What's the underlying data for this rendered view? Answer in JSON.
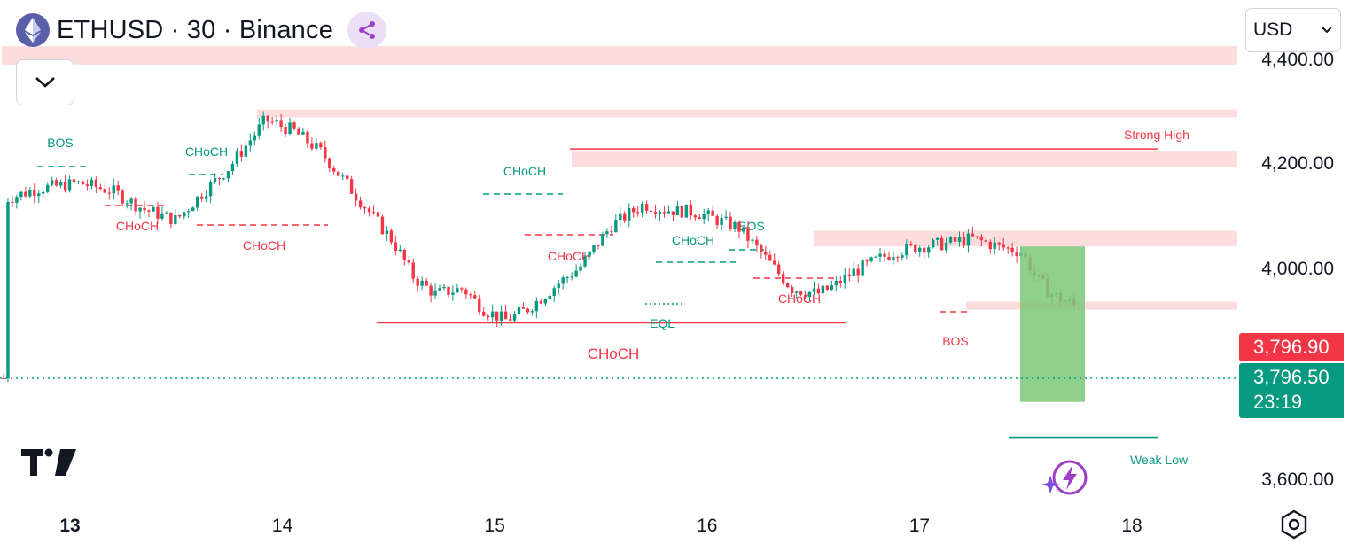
{
  "header": {
    "coin_icon": "ethereum-icon",
    "title": "ETHUSD · 30 · Binance",
    "share_icon": "share-icon",
    "collapse_icon": "chevron-down-icon"
  },
  "currency": {
    "label": "USD",
    "icon": "chevron-down-icon"
  },
  "price_tags": {
    "bid": "3,796.90",
    "last": "3,796.50",
    "countdown": "23:19"
  },
  "colors": {
    "up": "#089981",
    "down": "#f23645",
    "zone": "#fcdcdc",
    "position": "#7cc87a"
  },
  "chart_data": {
    "type": "candlestick",
    "symbol": "ETHUSD",
    "interval": "30",
    "exchange": "Binance",
    "x_ticks": [
      "13",
      "14",
      "15",
      "16",
      "17",
      "18"
    ],
    "y_ticks": [
      "4,400.00",
      "4,200.00",
      "4,000.00",
      "3,600.00"
    ],
    "ylim": [
      3600,
      4400
    ],
    "last_price": 3796.5,
    "close_path": [
      [
        12.7,
        4130
      ],
      [
        12.85,
        4150
      ],
      [
        13.05,
        4160
      ],
      [
        13.2,
        4145
      ],
      [
        13.35,
        4110
      ],
      [
        13.5,
        4090
      ],
      [
        13.62,
        4140
      ],
      [
        13.75,
        4190
      ],
      [
        13.92,
        4280
      ],
      [
        14.05,
        4260
      ],
      [
        14.18,
        4220
      ],
      [
        14.3,
        4160
      ],
      [
        14.42,
        4100
      ],
      [
        14.52,
        4050
      ],
      [
        14.62,
        3980
      ],
      [
        14.72,
        3950
      ],
      [
        14.85,
        3960
      ],
      [
        14.95,
        3920
      ],
      [
        15.05,
        3900
      ],
      [
        15.15,
        3920
      ],
      [
        15.3,
        3970
      ],
      [
        15.4,
        4000
      ],
      [
        15.55,
        4080
      ],
      [
        15.7,
        4120
      ],
      [
        15.8,
        4110
      ],
      [
        15.95,
        4105
      ],
      [
        16.05,
        4090
      ],
      [
        16.15,
        4075
      ],
      [
        16.27,
        4020
      ],
      [
        16.4,
        3960
      ],
      [
        16.52,
        3950
      ],
      [
        16.6,
        3965
      ],
      [
        16.68,
        3990
      ],
      [
        16.78,
        4010
      ],
      [
        16.88,
        4030
      ],
      [
        17.0,
        4040
      ],
      [
        17.12,
        4045
      ],
      [
        17.25,
        4055
      ],
      [
        17.37,
        4040
      ],
      [
        17.48,
        4030
      ],
      [
        17.55,
        3980
      ],
      [
        17.62,
        3950
      ],
      [
        17.72,
        3930
      ],
      [
        17.85,
        3890
      ],
      [
        17.95,
        3850
      ],
      [
        18.05,
        3820
      ],
      [
        18.15,
        3800
      ],
      [
        18.25,
        3790
      ]
    ],
    "zones": [
      {
        "from": 4385,
        "to": 4420,
        "label": ""
      },
      {
        "from": 4285,
        "to": 4300,
        "label": ""
      },
      {
        "from": 4190,
        "to": 4220,
        "label": ""
      },
      {
        "from": 4040,
        "to": 4070,
        "label": ""
      },
      {
        "from": 3920,
        "to": 3935,
        "label": ""
      }
    ],
    "levels": [
      {
        "price": 4225,
        "label": "Strong High",
        "color": "#f23645"
      },
      {
        "price": 3678,
        "label": "Weak Low",
        "color": "#089981"
      },
      {
        "price": 3895,
        "label": "CHoCH",
        "color": "#f23645"
      }
    ],
    "structure_labels": [
      {
        "text": "BOS",
        "color": "#089981"
      },
      {
        "text": "CHoCH",
        "color": "#089981"
      },
      {
        "text": "CHoCH",
        "color": "#f23645"
      },
      {
        "text": "CHoCH",
        "color": "#f23645"
      },
      {
        "text": "CHoCH",
        "color": "#089981"
      },
      {
        "text": "CHoCH",
        "color": "#f23645"
      },
      {
        "text": "CHoCH",
        "color": "#089981"
      },
      {
        "text": "BOS",
        "color": "#089981"
      },
      {
        "text": "CHoCH",
        "color": "#f23645"
      },
      {
        "text": "EQL",
        "color": "#089981"
      },
      {
        "text": "BOS",
        "color": "#f23645"
      },
      {
        "text": "CHoCH",
        "color": "#f23645"
      }
    ],
    "position_box": {
      "top": 4040,
      "bottom": 3745,
      "color": "#7cc87a"
    },
    "grid": false
  }
}
